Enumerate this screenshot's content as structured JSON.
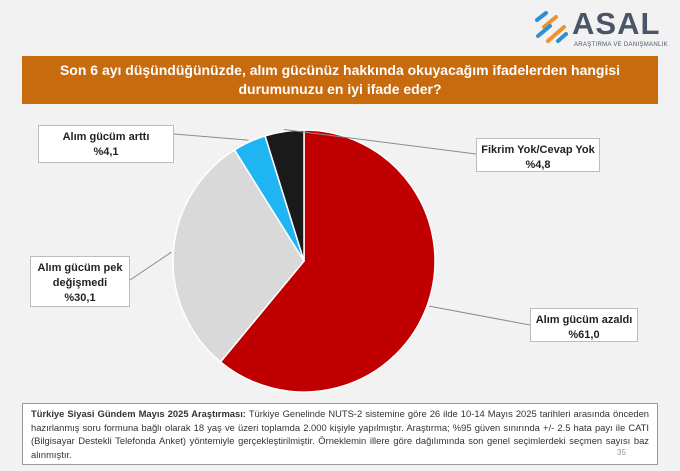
{
  "brand": {
    "name": "ASAL",
    "tagline": "ARAŞTIRMA VE DANIŞMANLIK",
    "colors": {
      "orange": "#f0922b",
      "blue": "#2f8fd0",
      "gray": "#4a5568"
    }
  },
  "question": {
    "line1": "Son 6 ayı düşündüğünüzde, alım gücünüz hakkında okuyacağım ifadelerden hangisi",
    "line2": "durumunuzu en iyi ifade eder?",
    "color": "#c86a0e"
  },
  "chart_data": {
    "type": "pie",
    "title": "",
    "slices": [
      {
        "label_lines": [
          "Alım gücüm azaldı"
        ],
        "value_text": "%61,0",
        "value": 61.0,
        "color": "#c00000"
      },
      {
        "label_lines": [
          "Alım gücüm pek",
          "değişmedi"
        ],
        "value_text": "%30,1",
        "value": 30.1,
        "color": "#d9d9d9"
      },
      {
        "label_lines": [
          "Alım gücüm arttı"
        ],
        "value_text": "%4,1",
        "value": 4.1,
        "color": "#1fb4f2"
      },
      {
        "label_lines": [
          "Fikrim Yok/Cevap Yok"
        ],
        "value_text": "%4,8",
        "value": 4.8,
        "color": "#1a1a1a"
      }
    ],
    "legend": "none"
  },
  "footer": {
    "lead": "Türkiye Siyasi Gündem Mayıs 2025 Araştırması:",
    "body": "Türkiye Genelinde NUTS-2 sistemine göre 26 ilde 10-14 Mayıs 2025 tarihleri arasında önceden hazırlanmış soru formuna bağlı olarak 18 yaş ve üzeri toplamda 2.000 kişiyle yapılmıştır. Araştırma; %95 güven sınırında +/- 2.5 hata payı ile CATI (Bilgisayar Destekli Telefonda Anket) yöntemiyle gerçekleştirilmiştir. Örneklemin illere göre dağılımında son genel seçimlerdeki seçmen sayısı baz alınmıştır."
  },
  "page_number": "35"
}
